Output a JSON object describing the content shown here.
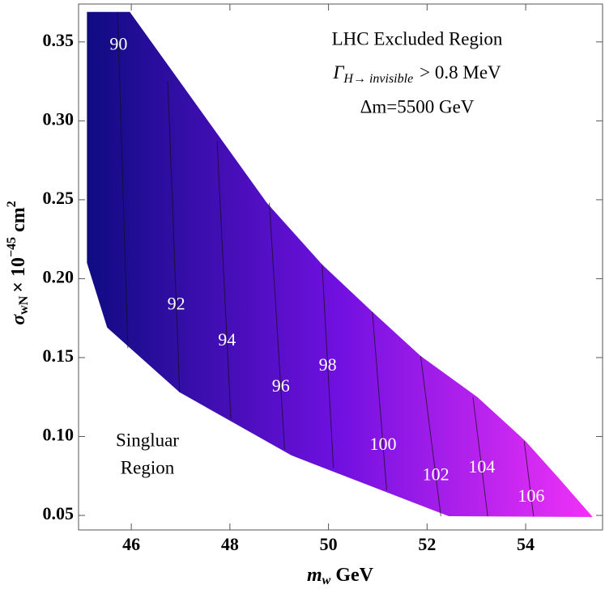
{
  "chart_data": {
    "type": "contour",
    "x_label": {
      "symbol": "m",
      "sub": "w",
      "unit": "GeV"
    },
    "y_label": {
      "symbol": "σ",
      "sub": "wN",
      "mid": "× 10",
      "sup": "−45",
      "unit": "cm",
      "unit_sup": "2"
    },
    "annotations": {
      "title": "LHC Excluded Region",
      "width": {
        "symbol": "Γ",
        "sub": "H→ invisible",
        "rest": "> 0.8 MeV"
      },
      "delta": "Δm=5500 GeV",
      "singular": [
        "Singluar",
        "Region"
      ]
    },
    "xlim": [
      44.93,
      55.56
    ],
    "ylim": [
      0.0408,
      0.374
    ],
    "xticks": [
      46,
      48,
      50,
      52,
      54
    ],
    "yticks": [
      0.05,
      {
        "value": 0.1,
        "label": "0.10"
      },
      0.15,
      {
        "value": 0.2,
        "label": "0.20"
      },
      0.25,
      {
        "value": 0.3,
        "label": "0.30"
      },
      0.35
    ],
    "colors": [
      "#0c0c80",
      "#7010e0",
      "#f232f8"
    ],
    "region": {
      "x": [
        45.1,
        45.97,
        48.75,
        49.87,
        50.89,
        51.87,
        53.02,
        54.0,
        54.66,
        55.36,
        52.44,
        49.25,
        46.98,
        45.51,
        45.1
      ],
      "y": [
        0.369,
        0.369,
        0.248,
        0.209,
        0.179,
        0.151,
        0.125,
        0.097,
        0.074,
        0.049,
        0.0495,
        0.088,
        0.128,
        0.169,
        0.21
      ]
    },
    "contours": [
      {
        "level": 90,
        "x": [
          45.72,
          45.93
        ],
        "y": [
          0.369,
          0.156
        ]
      },
      {
        "level": 92,
        "x": [
          46.74,
          46.98
        ],
        "y": [
          0.325,
          0.128
        ]
      },
      {
        "level": 94,
        "x": [
          47.74,
          48.02
        ],
        "y": [
          0.287,
          0.111
        ]
      },
      {
        "level": 96,
        "x": [
          48.8,
          49.11
        ],
        "y": [
          0.248,
          0.092
        ]
      },
      {
        "level": 98,
        "x": [
          49.87,
          50.1
        ],
        "y": [
          0.209,
          0.08
        ]
      },
      {
        "level": 100,
        "x": [
          50.89,
          51.18
        ],
        "y": [
          0.179,
          0.066
        ]
      },
      {
        "level": 102,
        "x": [
          51.87,
          52.28
        ],
        "y": [
          0.151,
          0.0495
        ]
      },
      {
        "level": 104,
        "x": [
          52.93,
          53.23
        ],
        "y": [
          0.125,
          0.0495
        ]
      },
      {
        "level": 106,
        "x": [
          53.97,
          54.16
        ],
        "y": [
          0.097,
          0.0495
        ]
      }
    ]
  }
}
